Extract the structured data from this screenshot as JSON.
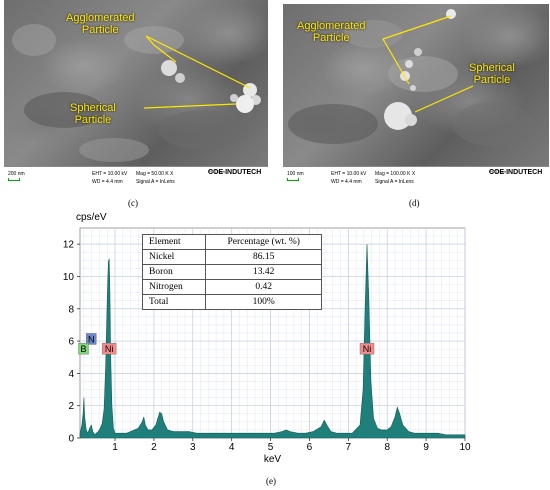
{
  "sem_c": {
    "label_agglomerated": "Agglomerated\nParticle",
    "label_spherical": "Spherical\nParticle",
    "scale_text": "200 nm",
    "eht": "EHT = 10.00 kV",
    "wd": "WD = 4.4 mm",
    "mag": "Mag = 50.00 K X",
    "signal": "Signal A = InLens",
    "caption": "(c)"
  },
  "sem_d": {
    "label_agglomerated": "Agglomerated\nParticle",
    "label_spherical": "Spherical\nParticle",
    "scale_text": "100 nm",
    "eht": "EHT = 10.00 kV",
    "wd": "WD = 4.4 mm",
    "mag": "Mag = 100.00 K X",
    "signal": "Signal A = InLens",
    "caption": "(d)"
  },
  "logo": {
    "small": "PSGTech",
    "big": "COE INDUTECH"
  },
  "eds": {
    "caption": "(e)",
    "table": {
      "headers": [
        "Element",
        "Percentage (wt. %)"
      ],
      "rows": [
        [
          "Nickel",
          "86.15"
        ],
        [
          "Boron",
          "13.42"
        ],
        [
          "Nitrogen",
          "0.42"
        ],
        [
          "Total",
          "100%"
        ]
      ]
    },
    "peak_labels": [
      {
        "text": "N",
        "x": 0.39,
        "y": 6.1,
        "color": "#6d86c9"
      },
      {
        "text": "B",
        "x": 0.19,
        "y": 5.5,
        "color": "#7ed77a"
      },
      {
        "text": "Ni",
        "x": 0.85,
        "y": 5.5,
        "color": "#f28b8b"
      },
      {
        "text": "Ni",
        "x": 7.48,
        "y": 5.5,
        "color": "#f28b8b"
      }
    ]
  },
  "chart_data": {
    "type": "area",
    "title": "",
    "xlabel": "keV",
    "ylabel": "cps/eV",
    "xlim": [
      0.1,
      10
    ],
    "ylim": [
      0,
      13
    ],
    "x_ticks": [
      1,
      2,
      3,
      4,
      5,
      6,
      7,
      8,
      9,
      10
    ],
    "y_ticks": [
      0,
      2,
      4,
      6,
      8,
      10,
      12
    ],
    "grid": true,
    "fill_color": "#1f7f7a",
    "series": [
      {
        "x": [
          0.1,
          0.15,
          0.18,
          0.2,
          0.22,
          0.26,
          0.3,
          0.35,
          0.39,
          0.43,
          0.48,
          0.52,
          0.57,
          0.62,
          0.67,
          0.72,
          0.76,
          0.8,
          0.83,
          0.85,
          0.87,
          0.89,
          0.92,
          0.96,
          1.0,
          1.05,
          1.1,
          1.2,
          1.3,
          1.4,
          1.5,
          1.6,
          1.7,
          1.74,
          1.78,
          1.85,
          1.95,
          2.05,
          2.15,
          2.2,
          2.25,
          2.35,
          2.5,
          2.7,
          2.9,
          3.1,
          3.3,
          3.5,
          3.7,
          3.9,
          4.1,
          4.3,
          4.5,
          4.7,
          4.9,
          5.1,
          5.3,
          5.4,
          5.5,
          5.7,
          5.9,
          6.1,
          6.3,
          6.38,
          6.45,
          6.55,
          6.7,
          6.9,
          7.1,
          7.3,
          7.38,
          7.43,
          7.48,
          7.53,
          7.58,
          7.65,
          7.75,
          7.85,
          8.0,
          8.1,
          8.2,
          8.26,
          8.32,
          8.4,
          8.55,
          8.7,
          8.9,
          9.1,
          9.3,
          9.5,
          9.7,
          9.9,
          10.0
        ],
        "y": [
          0.3,
          0.8,
          1.5,
          2.5,
          1.3,
          0.5,
          0.3,
          0.6,
          0.8,
          0.4,
          0.2,
          0.3,
          0.4,
          0.6,
          0.9,
          1.8,
          4.5,
          8.5,
          10.9,
          11.1,
          9.0,
          5.0,
          2.0,
          0.6,
          0.3,
          0.3,
          0.3,
          0.3,
          0.3,
          0.4,
          0.5,
          0.6,
          1.0,
          1.3,
          0.8,
          0.5,
          0.5,
          0.8,
          1.6,
          1.5,
          1.0,
          0.5,
          0.4,
          0.4,
          0.4,
          0.3,
          0.3,
          0.3,
          0.3,
          0.3,
          0.3,
          0.3,
          0.3,
          0.3,
          0.3,
          0.3,
          0.4,
          0.5,
          0.4,
          0.3,
          0.3,
          0.4,
          0.7,
          1.1,
          0.8,
          0.4,
          0.3,
          0.3,
          0.3,
          0.8,
          3.0,
          8.0,
          12.0,
          8.5,
          3.5,
          1.2,
          0.6,
          0.5,
          0.5,
          0.7,
          1.3,
          1.9,
          1.5,
          0.8,
          0.4,
          0.3,
          0.3,
          0.3,
          0.3,
          0.2,
          0.2,
          0.2,
          0.2
        ]
      }
    ]
  }
}
